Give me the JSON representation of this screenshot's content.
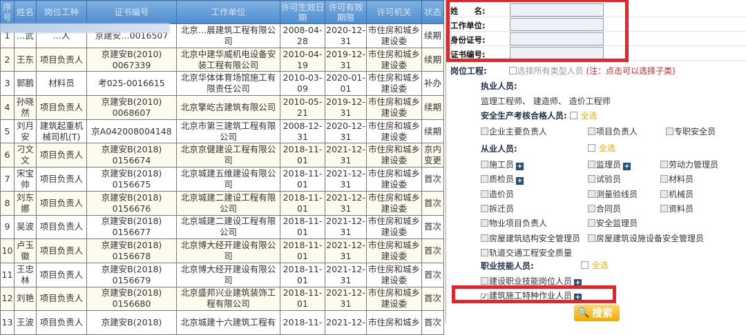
{
  "table": {
    "headers": [
      "序号",
      "姓名",
      "岗位工种",
      "证书编号",
      "工作单位",
      "许可生效日期",
      "许可有效期限",
      "许可机关",
      "状态"
    ],
    "rows": [
      [
        "1",
        "…武",
        "…人",
        "京建安…0016507",
        "北京…晨建筑工程有限公司",
        "2008-04-28",
        "2020-12-31",
        "市住房和城乡建设委",
        "续期"
      ],
      [
        "2",
        "王东",
        "项目负责人",
        "京建安B(2010) 0067339",
        "北京中建华威机电设备安装工程有限公司",
        "2010-04-19",
        "2019-12-31",
        "市住房和城乡建设委",
        "续期"
      ],
      [
        "3",
        "郭鹏",
        "材料员",
        "考025-0016615",
        "北京华体体育场馆施工有限责任公司",
        "2010-03-09",
        "2020-01-01",
        "市住房和城乡建设委",
        "补办"
      ],
      [
        "4",
        "孙晓然",
        "项目负责人",
        "京建安B(2010) 0068607",
        "北京擎屹古建筑有限公司",
        "2010-05-21",
        "2019-12-31",
        "市住房和城乡建设委",
        "续期"
      ],
      [
        "5",
        "刘月安",
        "建筑起重机械司机(T)",
        "京A042008004148",
        "北京市第三建筑工程有限公司",
        "2008-12-31",
        "2020-12-31",
        "市住房和城乡建设委",
        "续期"
      ],
      [
        "6",
        "刁文文",
        "项目负责人",
        "京建安B(2018) 0156674",
        "北京京健建设工程有限公司",
        "2018-11-01",
        "2021-12-31",
        "市住房和城乡建设委",
        "京内变更"
      ],
      [
        "7",
        "宋宝帅",
        "项目负责人",
        "京建安B(2018) 0156675",
        "北京城建五维建设有限公司",
        "2018-11-01",
        "2021-12-31",
        "市住房和城乡建设委",
        "首次"
      ],
      [
        "8",
        "刘东娜",
        "项目负责人",
        "京建安B(2018) 0156676",
        "北京城建二建设工程有限公司",
        "2018-11-01",
        "2021-12-31",
        "市住房和城乡建设委",
        "首次"
      ],
      [
        "9",
        "吴波",
        "项目负责人",
        "京建安B(2018) 0156677",
        "北京城建二建设工程有限公司",
        "2018-11-01",
        "2021-12-31",
        "市住房和城乡建设委",
        "首次"
      ],
      [
        "10",
        "卢玉徽",
        "项目负责人",
        "京建安B(2018) 0156678",
        "北京博大经开建设有限公司",
        "2018-11-01",
        "2021-12-31",
        "市住房和城乡建设委",
        "首次"
      ],
      [
        "11",
        "王忠林",
        "项目负责人",
        "京建安B(2018) 0156679",
        "北京博大经开建设有限公司",
        "2018-11-01",
        "2021-12-31",
        "市住房和城乡建设委",
        "首次"
      ],
      [
        "12",
        "刘艳",
        "项目负责人",
        "京建安B(2018) 0156680",
        "北京盛邦兴业建筑装饰工程有限公司",
        "2018-11-01",
        "2021-12-31",
        "市住房和城乡建设委",
        "首次"
      ],
      [
        "13",
        "王波",
        "项目负责人",
        "京建安B(2018)",
        "北京城建十六建筑工程有",
        "2018-11-",
        "2021-12-",
        "市住房和城乡",
        "首次"
      ]
    ]
  },
  "form": {
    "name_label": "姓　　名:",
    "unit_label": "工作单位:",
    "id_label": "身份证号:",
    "cert_label": "证书编号:",
    "name_value": "",
    "unit_value": "",
    "id_value": "",
    "cert_value": ""
  },
  "filters": {
    "post_label": "岗位工程:",
    "select_all_types": "选择所有类型人员",
    "note": "(注：点击可以选择子类)",
    "licensed_label": "执业人员:",
    "licensed_list": "监理工程师、 建造师、 造价工程师",
    "safety_label": "安全生产考核合格人员:",
    "select_all": "全选",
    "safety_items": [
      "企业主要负责人",
      "项目负责人",
      "专职安全员"
    ],
    "staff_label": "从业人员:",
    "staff_items": [
      "施工员",
      "监理员",
      "劳动力管理员",
      "质检员",
      "试验员",
      "材料员",
      "造价员",
      "测量验线员",
      "机械员",
      "拆迁员",
      "合同员",
      "资料员",
      "物业项目负责人",
      "安全监理员",
      "房屋建筑结构安全管理员",
      "房屋建筑设施设备安全管理员",
      "轨道交通工程安全质量"
    ],
    "skill_label": "职业技能人员:",
    "skill_items": [
      "建设职业技能岗位人员",
      "建筑施工特种作业人员"
    ],
    "special_checked": true
  },
  "search_label": "搜索",
  "colors": {
    "highlight": "#e4262a",
    "header": "#5a94d4",
    "select_all": "#e8b200",
    "search": "#f2a900"
  }
}
